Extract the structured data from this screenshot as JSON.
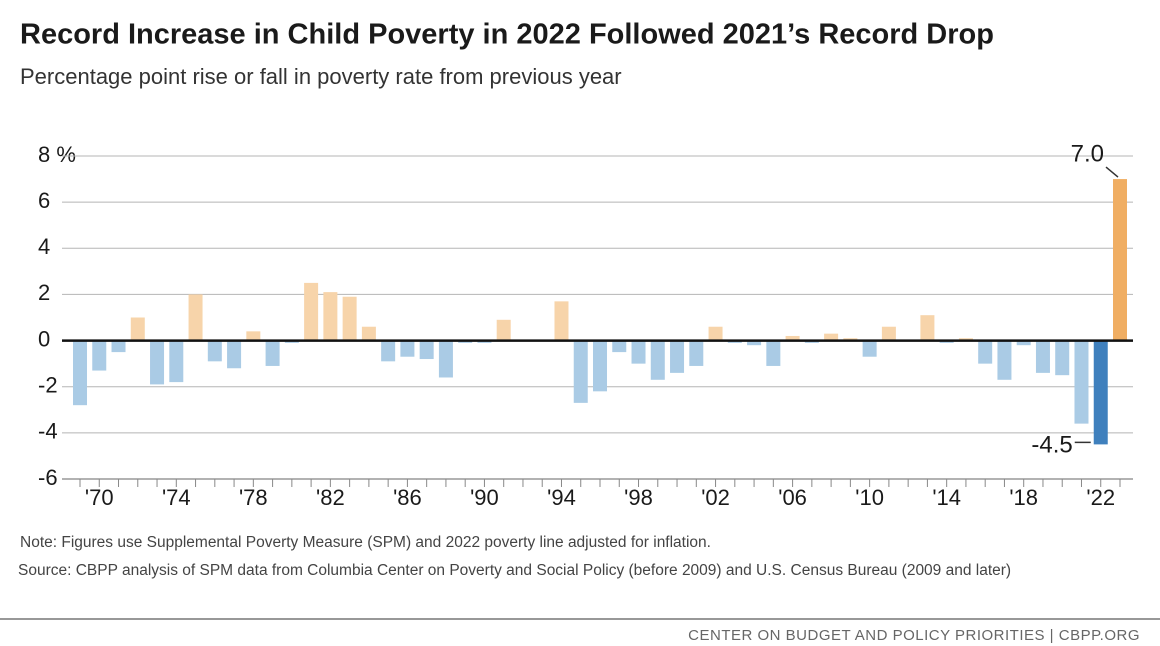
{
  "chart_data": {
    "type": "bar",
    "title": "Record Increase in Child Poverty in 2022 Followed 2021’s Record Drop",
    "subtitle": "Percentage point rise or fall in poverty rate from previous year",
    "categories": [
      null,
      "'70",
      null,
      null,
      null,
      "'74",
      null,
      null,
      null,
      "'78",
      null,
      null,
      null,
      "'82",
      null,
      null,
      null,
      "'86",
      null,
      null,
      null,
      "'90",
      null,
      null,
      null,
      "'94",
      null,
      null,
      null,
      "'98",
      null,
      null,
      null,
      "'02",
      null,
      null,
      null,
      "'06",
      null,
      null,
      null,
      "'10",
      null,
      null,
      null,
      "'14",
      null,
      null,
      null,
      "'18",
      null,
      null,
      null,
      "'22",
      null
    ],
    "values": [
      -2.8,
      -1.3,
      -0.5,
      1.0,
      -1.9,
      -1.8,
      2.0,
      -0.9,
      -1.2,
      0.4,
      -1.1,
      -0.1,
      2.5,
      2.1,
      1.9,
      0.6,
      -0.9,
      -0.7,
      -0.8,
      -1.6,
      -0.1,
      -0.1,
      0.9,
      0,
      0,
      1.7,
      -2.7,
      -2.2,
      -0.5,
      -1.0,
      -1.7,
      -1.4,
      -1.1,
      0.6,
      -0.1,
      -0.2,
      -1.1,
      0.2,
      -0.1,
      0.3,
      0.1,
      -0.7,
      0.6,
      0,
      1.1,
      -0.1,
      0.1,
      -1.0,
      -1.7,
      -0.2,
      -1.4,
      -1.5,
      -3.6,
      -4.5,
      7.0
    ],
    "value_labels": [
      null,
      null,
      null,
      null,
      null,
      null,
      null,
      null,
      null,
      null,
      null,
      null,
      null,
      null,
      null,
      null,
      null,
      null,
      null,
      null,
      null,
      null,
      null,
      null,
      null,
      null,
      null,
      null,
      null,
      null,
      null,
      null,
      null,
      null,
      null,
      null,
      null,
      null,
      null,
      null,
      null,
      null,
      null,
      null,
      null,
      null,
      null,
      null,
      null,
      null,
      null,
      null,
      null,
      "-4.5",
      "7.0"
    ],
    "positive_color": "#f7d4aa",
    "negative_color": "#aacbe5",
    "highlight_colors": [
      null,
      null,
      null,
      null,
      null,
      null,
      null,
      null,
      null,
      null,
      null,
      null,
      null,
      null,
      null,
      null,
      null,
      null,
      null,
      null,
      null,
      null,
      null,
      null,
      null,
      null,
      null,
      null,
      null,
      null,
      null,
      null,
      null,
      null,
      null,
      null,
      null,
      null,
      null,
      null,
      null,
      null,
      null,
      null,
      null,
      null,
      null,
      null,
      null,
      null,
      null,
      null,
      null,
      "#3f80bd",
      "#f0ae63"
    ],
    "ylim": [
      -6,
      8
    ],
    "yticks": [
      -6,
      -4,
      -2,
      0,
      2,
      4,
      6,
      {
        "value": 8,
        "label": "8 %"
      }
    ],
    "grid": true,
    "note": "Note: Figures use Supplemental Poverty Measure (SPM) and 2022 poverty line adjusted for inflation.",
    "source": "Source: CBPP analysis of SPM data from Columbia Center on Poverty and Social Policy (before 2009) and U.S. Census Bureau (2009 and later)",
    "footer": "CENTER ON BUDGET AND POLICY PRIORITIES | CBPP.ORG"
  }
}
